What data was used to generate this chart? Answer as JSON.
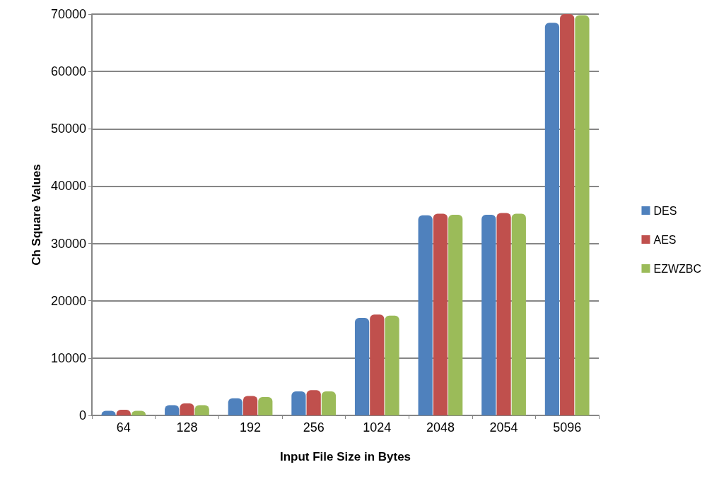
{
  "chart_data": {
    "type": "bar",
    "xlabel": "Input File Size in Bytes",
    "ylabel": "Ch Square Values",
    "categories": [
      "64",
      "128",
      "192",
      "256",
      "1024",
      "2048",
      "2054",
      "5096"
    ],
    "series": [
      {
        "name": "DES",
        "color": "#4f81bd",
        "values": [
          800,
          1800,
          3000,
          4200,
          17000,
          34900,
          35000,
          68500
        ]
      },
      {
        "name": "AES",
        "color": "#c0504d",
        "values": [
          1000,
          2100,
          3400,
          4400,
          17600,
          35200,
          35300,
          70000
        ]
      },
      {
        "name": "EZWZBC",
        "color": "#9bbb59",
        "values": [
          800,
          1800,
          3200,
          4200,
          17400,
          35000,
          35200,
          69800
        ]
      }
    ],
    "ylim": [
      0,
      70000
    ],
    "yticks": [
      0,
      10000,
      20000,
      30000,
      40000,
      50000,
      60000,
      70000
    ],
    "grid": "y",
    "legend": "right"
  }
}
